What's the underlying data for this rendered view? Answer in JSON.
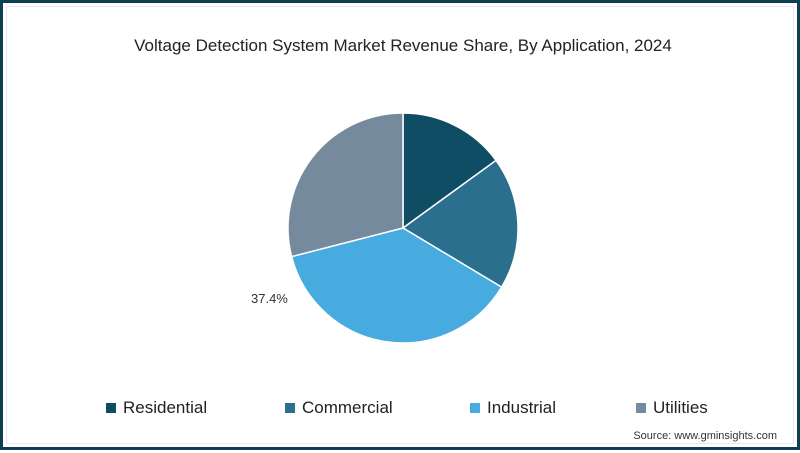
{
  "title": "Voltage Detection System Market Revenue Share, By Application, 2024",
  "source": "Source: www.gminsights.com",
  "chart_data": {
    "type": "pie",
    "title": "Voltage Detection System Market Revenue Share, By Application, 2024",
    "categories": [
      "Residential",
      "Commercial",
      "Industrial",
      "Utilities"
    ],
    "values": [
      15.0,
      18.6,
      37.4,
      29.0
    ],
    "value_sources": [
      "estimated",
      "estimated",
      "labeled",
      "estimated"
    ],
    "colors": [
      "#0e4d64",
      "#2b6f8f",
      "#48abe0",
      "#768a9e"
    ],
    "unit": "%",
    "start_angle_deg": 0,
    "direction": "clockwise",
    "data_labels": [
      {
        "category": "Industrial",
        "text": "37.4%"
      }
    ],
    "legend_position": "bottom"
  },
  "legend": [
    {
      "label": "Residential",
      "color": "#0e4d64"
    },
    {
      "label": "Commercial",
      "color": "#2b6f8f"
    },
    {
      "label": "Industrial",
      "color": "#48abe0"
    },
    {
      "label": "Utilities",
      "color": "#768a9e"
    }
  ],
  "labels": {
    "industrial": "37.4%"
  }
}
